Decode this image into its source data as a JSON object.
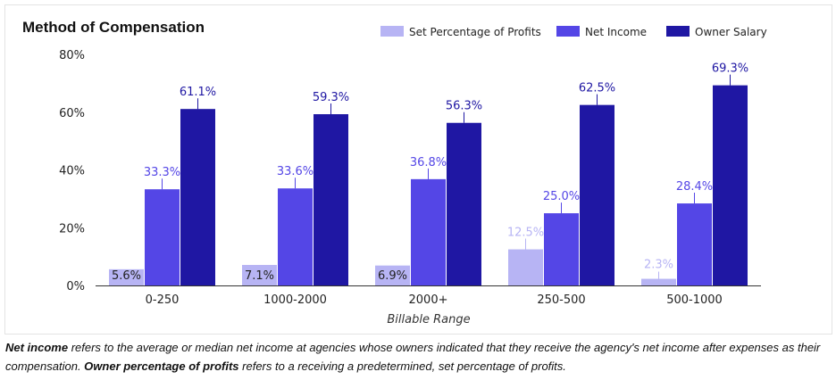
{
  "chart_data": {
    "type": "bar",
    "title": "Method of Compensation",
    "xlabel": "Billable Range",
    "ylabel": "",
    "ylim": [
      0,
      80
    ],
    "yticks": [
      "0%",
      "20%",
      "40%",
      "60%",
      "80%"
    ],
    "categories": [
      "0-250",
      "1000-2000",
      "2000+",
      "250-500",
      "500-1000"
    ],
    "series": [
      {
        "name": "Set Percentage of Profits",
        "color": "#b7b4f4",
        "values": [
          5.6,
          7.1,
          6.9,
          12.5,
          2.3
        ],
        "labels": [
          "5.6%",
          "7.1%",
          "6.9%",
          "12.5%",
          "2.3%"
        ]
      },
      {
        "name": "Net Income",
        "color": "#5446e6",
        "values": [
          33.3,
          33.6,
          36.8,
          25.0,
          28.4
        ],
        "labels": [
          "33.3%",
          "33.6%",
          "36.8%",
          "25.0%",
          "28.4%"
        ]
      },
      {
        "name": "Owner Salary",
        "color": "#1f17a3",
        "values": [
          61.1,
          59.3,
          56.3,
          62.5,
          69.3
        ],
        "labels": [
          "61.1%",
          "59.3%",
          "56.3%",
          "62.5%",
          "69.3%"
        ]
      }
    ],
    "legend_position": "top-right"
  },
  "caption": {
    "term1": "Net income",
    "text1": " refers to the average or median net income at agencies whose owners indicated that they receive the agency's net income after expenses as their compensation. ",
    "term2": "Owner percentage of profits",
    "text2": " refers to a receiving a predetermined, set percentage of profits."
  }
}
